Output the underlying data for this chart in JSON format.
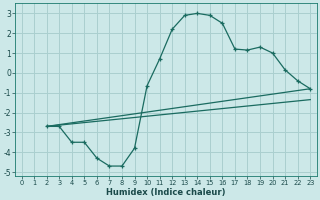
{
  "xlabel": "Humidex (Indice chaleur)",
  "background_color": "#cce8e8",
  "grid_color": "#aacfcf",
  "line_color": "#1a6b60",
  "xlim": [
    -0.5,
    23.5
  ],
  "ylim": [
    -5.2,
    3.5
  ],
  "yticks": [
    -5,
    -4,
    -3,
    -2,
    -1,
    0,
    1,
    2,
    3
  ],
  "xticks": [
    0,
    1,
    2,
    3,
    4,
    5,
    6,
    7,
    8,
    9,
    10,
    11,
    12,
    13,
    14,
    15,
    16,
    17,
    18,
    19,
    20,
    21,
    22,
    23
  ],
  "line1_x": [
    2,
    3,
    4,
    5,
    6,
    7,
    8,
    9,
    10,
    11,
    12,
    13,
    14,
    15,
    16,
    17,
    18,
    19,
    20,
    21,
    22,
    23
  ],
  "line1_y": [
    -2.7,
    -2.7,
    -3.5,
    -3.5,
    -4.3,
    -4.7,
    -4.7,
    -3.8,
    -0.65,
    0.7,
    2.2,
    2.9,
    3.0,
    2.9,
    2.5,
    1.2,
    1.15,
    1.3,
    1.0,
    0.15,
    -0.4,
    -0.8
  ],
  "line2_x": [
    2,
    23
  ],
  "line2_y": [
    -2.7,
    -0.8
  ],
  "line3_x": [
    2,
    23
  ],
  "line3_y": [
    -2.7,
    -1.35
  ],
  "line2_markers_x": [
    5,
    10,
    14,
    19,
    20,
    23
  ],
  "line2_markers_y": [
    -3.22,
    -1.85,
    -0.95,
    -0.2,
    -0.1,
    -0.8
  ]
}
